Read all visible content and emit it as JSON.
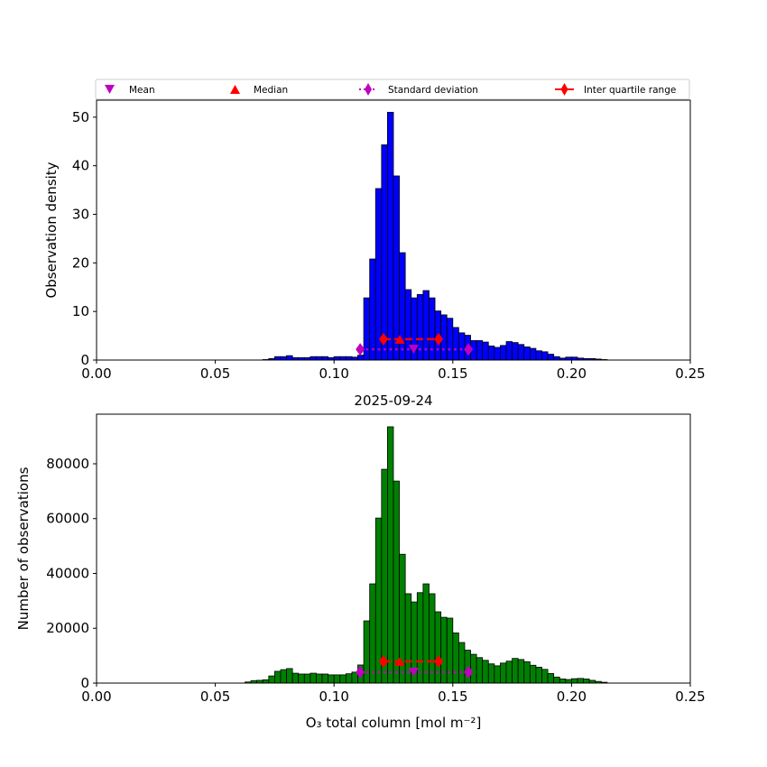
{
  "chart_data": [
    {
      "type": "bar",
      "ylabel": "Observation density",
      "xlabel": "",
      "title": "",
      "xlim": [
        0,
        0.25
      ],
      "ylim": [
        0,
        53.5
      ],
      "xticks": [
        "0.00",
        "0.05",
        "0.10",
        "0.15",
        "0.20",
        "0.25"
      ],
      "yticks": [
        "0",
        "10",
        "20",
        "30",
        "40",
        "50"
      ],
      "ytick_values": [
        0,
        10,
        20,
        30,
        40,
        50
      ],
      "bar_color": "#0000ff",
      "bin_width": 0.0025,
      "bin_start": 0.07,
      "values": [
        0.1,
        0.3,
        0.7,
        0.7,
        0.9,
        0.5,
        0.5,
        0.5,
        0.7,
        0.7,
        0.7,
        0.5,
        0.7,
        0.7,
        0.7,
        0.6,
        1.0,
        12.8,
        20.8,
        35.3,
        44.3,
        51,
        37.9,
        22.1,
        14.5,
        12.8,
        13.5,
        14.3,
        12.8,
        10.1,
        9.3,
        8.6,
        6.7,
        5.6,
        5.1,
        4.0,
        4.0,
        3.7,
        2.9,
        2.6,
        3.0,
        3.8,
        3.6,
        3.2,
        2.7,
        2.4,
        1.9,
        1.7,
        1.2,
        0.7,
        0.4,
        0.6,
        0.6,
        0.4,
        0.3,
        0.3,
        0.2,
        0.1
      ],
      "stats": {
        "mean": {
          "x": 0.1335,
          "y": 2.2
        },
        "median": {
          "x": 0.1277,
          "y": 4.3
        },
        "std_range": {
          "x": [
            0.111,
            0.1566
          ],
          "y": 2.2
        },
        "iqr": {
          "x": [
            0.1208,
            0.144
          ],
          "y": 4.3
        }
      },
      "legend": {
        "placement": "top",
        "entries": [
          "Mean",
          "Median",
          "Standard deviation",
          "Inter quartile range"
        ]
      }
    },
    {
      "type": "bar",
      "title": "2025-09-24",
      "ylabel": "Number of observations",
      "xlabel": "O₃ total column [mol m⁻²]",
      "xlim": [
        0,
        0.25
      ],
      "ylim": [
        0,
        98100
      ],
      "xticks": [
        "0.00",
        "0.05",
        "0.10",
        "0.15",
        "0.20",
        "0.25"
      ],
      "yticks": [
        "0",
        "20000",
        "40000",
        "60000",
        "80000"
      ],
      "ytick_values": [
        0,
        20000,
        40000,
        60000,
        80000
      ],
      "bar_color": "#008000",
      "bin_width": 0.0025,
      "bin_start": 0.0625,
      "values": [
        400,
        900,
        1000,
        1200,
        2600,
        4300,
        4900,
        5300,
        3600,
        3300,
        3300,
        3600,
        3300,
        3300,
        3000,
        3000,
        3000,
        3400,
        4000,
        6600,
        22700,
        36200,
        60200,
        78000,
        93500,
        73700,
        47000,
        32600,
        29600,
        33000,
        36200,
        32600,
        26000,
        24000,
        23700,
        18300,
        14800,
        12000,
        10500,
        9300,
        8300,
        7000,
        6300,
        7300,
        8000,
        9000,
        8600,
        7800,
        6500,
        5800,
        5000,
        3500,
        2200,
        1500,
        1300,
        1600,
        1700,
        1500,
        1000,
        600,
        300
      ],
      "stats": {
        "mean": {
          "x": 0.1335,
          "y": 4000
        },
        "median": {
          "x": 0.1277,
          "y": 7900
        },
        "std_range": {
          "x": [
            0.111,
            0.1566
          ],
          "y": 4000
        },
        "iqr": {
          "x": [
            0.1208,
            0.144
          ],
          "y": 7900
        }
      }
    }
  ],
  "colors": {
    "mean": "#bf00bf",
    "median": "#ff0000",
    "std": "#bf00bf",
    "iqr": "#ff0000"
  }
}
